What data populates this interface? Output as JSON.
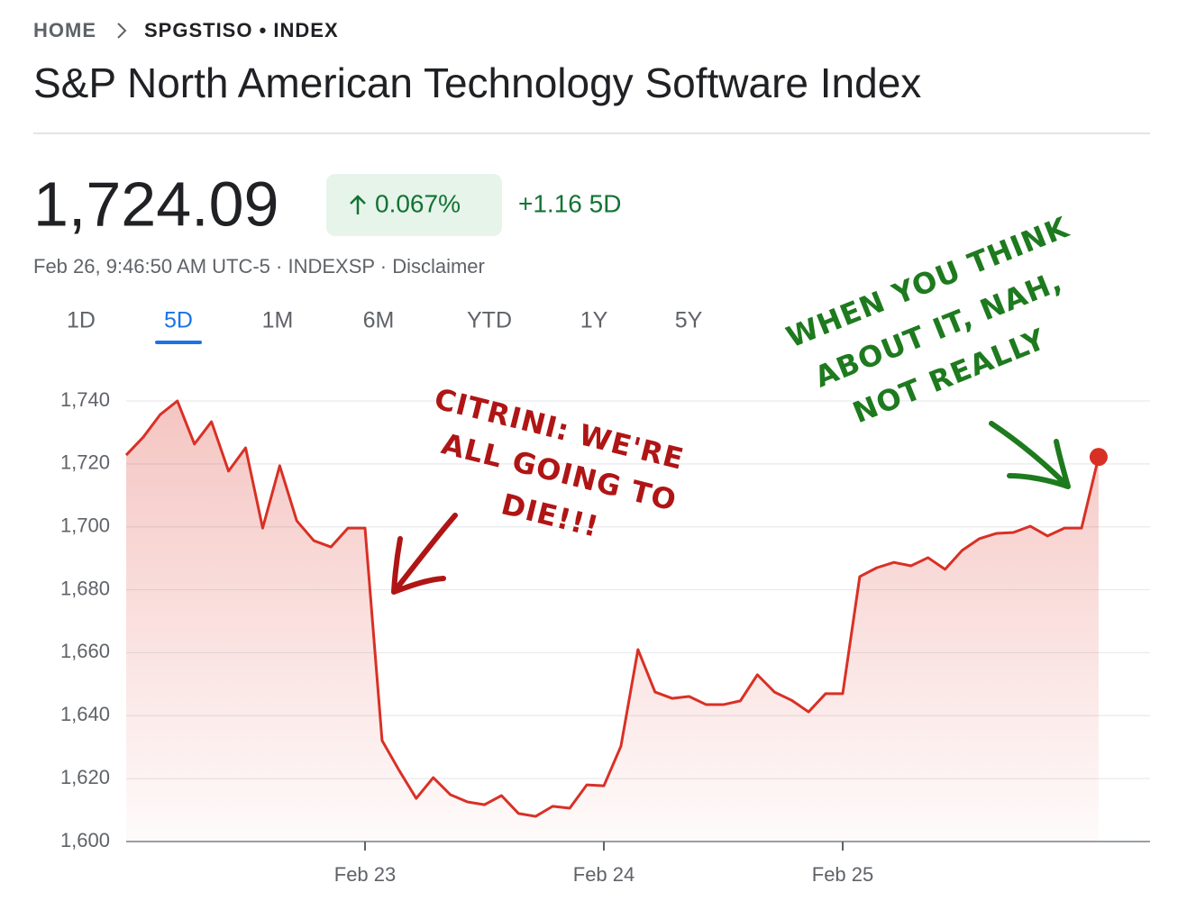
{
  "header": {
    "breadcrumb": [
      "HOME",
      "SPGSTISO • INDEX"
    ],
    "title": "S&P North American Technology Software Index",
    "price": "1,724.09",
    "change_percent": "0.067%",
    "change_5d": "+1.16 5D",
    "meta": "Feb 26, 9:46:50 AM UTC-5 · INDEXSP · Disclaimer",
    "tabs": [
      "1D",
      "5D",
      "1M",
      "6M",
      "YTD",
      "1Y",
      "5Y"
    ],
    "selected_tab": 1
  },
  "chart_data": {
    "type": "line",
    "categories": [
      null,
      null,
      null,
      null,
      null,
      null,
      null,
      null,
      null,
      null,
      null,
      null,
      null,
      null,
      "Feb 23",
      null,
      null,
      null,
      null,
      null,
      null,
      null,
      null,
      null,
      null,
      null,
      null,
      null,
      "Feb 24",
      null,
      null,
      null,
      null,
      null,
      null,
      null,
      null,
      null,
      null,
      null,
      null,
      null,
      "Feb 25",
      null,
      null,
      null,
      null,
      null,
      null,
      null,
      null,
      null,
      null,
      null,
      null,
      null,
      null,
      null
    ],
    "series": [
      {
        "name": "SPGSTISO",
        "color": "#d93025",
        "values": [
          1722.8,
          1728.5,
          1735.7,
          1740,
          1726.3,
          1733.4,
          1717.7,
          1725.1,
          1699.6,
          1719.4,
          1701.9,
          1695.6,
          1693.6,
          1699.6,
          1699.6,
          1632.1,
          1622.6,
          1613.7,
          1620.3,
          1614.9,
          1612.6,
          1611.7,
          1614.6,
          1608.9,
          1608,
          1611.2,
          1610.6,
          1618,
          1617.7,
          1630.3,
          1661,
          1647.5,
          1645.5,
          1646.1,
          1643.5,
          1643.5,
          1644.7,
          1653,
          1647.5,
          1644.9,
          1641.2,
          1647,
          1647,
          1684.2,
          1687,
          1688.7,
          1687.6,
          1690.2,
          1686.5,
          1692.5,
          1696.2,
          1697.9,
          1698.2,
          1700.2,
          1697.1,
          1699.6,
          1699.6,
          1722.2
        ]
      }
    ],
    "ylim": [
      1600,
      1740
    ],
    "yticks": [
      {
        "value": 1600,
        "label": "1,600"
      },
      {
        "value": 1620,
        "label": "1,620"
      },
      {
        "value": 1640,
        "label": "1,640"
      },
      {
        "value": 1660,
        "label": "1,660"
      },
      {
        "value": 1680,
        "label": "1,680"
      },
      {
        "value": 1700,
        "label": "1,700"
      },
      {
        "value": 1720,
        "label": "1,720"
      },
      {
        "value": 1740,
        "label": "1,740"
      }
    ],
    "grid": true,
    "annotations": [
      {
        "lines": [
          "CITRINI: WE'RE",
          "ALL GOING TO",
          "DIE!!!"
        ],
        "color": "#b01515"
      },
      {
        "lines": [
          "WHEN YOU THINK",
          "ABOUT IT, NAH,",
          "NOT REALLY"
        ],
        "color": "#1e7a1e"
      }
    ]
  }
}
